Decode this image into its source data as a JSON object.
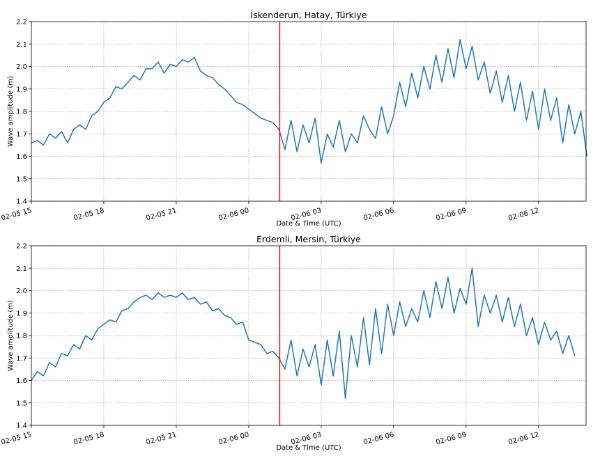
{
  "chart_data": [
    {
      "type": "line",
      "title": "İskenderun, Hatay, Türkiye",
      "xlabel": "Date & Time (UTC)",
      "ylabel": "Wave amplitude (m)",
      "ylim": [
        1.4,
        2.2
      ],
      "yticks": [
        "1.4",
        "1.5",
        "1.6",
        "1.7",
        "1.8",
        "1.9",
        "2.0",
        "2.1",
        "2.2"
      ],
      "xlim": [
        "02-05 15:00",
        "02-06 13:58"
      ],
      "xticks": [
        "02-05 15",
        "02-05 18",
        "02-05 21",
        "02-06 00",
        "02-06 03",
        "02-06 06",
        "02-06 09",
        "02-06 12"
      ],
      "grid": true,
      "line_color": "#1f77b4",
      "event_line": {
        "time": "02-06 01:17",
        "color": "#ff0000"
      },
      "series": [
        {
          "start": "02-05 15:00",
          "step_minutes": 15,
          "values": [
            1.66,
            1.67,
            1.65,
            1.7,
            1.68,
            1.71,
            1.66,
            1.72,
            1.74,
            1.72,
            1.78,
            1.8,
            1.84,
            1.86,
            1.91,
            1.9,
            1.93,
            1.96,
            1.94,
            1.99,
            1.99,
            2.02,
            1.97,
            2.01,
            2.0,
            2.03,
            2.02,
            2.04,
            1.98,
            1.96,
            1.95,
            1.92,
            1.9,
            1.87,
            1.84,
            1.83,
            1.81,
            1.79,
            1.77,
            1.76,
            1.75,
            1.72,
            1.63,
            1.76,
            1.62,
            1.74,
            1.66,
            1.77,
            1.57,
            1.7,
            1.64,
            1.76,
            1.62,
            1.7,
            1.66,
            1.78,
            1.72,
            1.68,
            1.82,
            1.7,
            1.78,
            1.93,
            1.82,
            1.97,
            1.86,
            2.0,
            1.9,
            2.05,
            1.93,
            2.08,
            1.95,
            2.12,
            1.99,
            2.09,
            1.94,
            2.02,
            1.88,
            1.98,
            1.84,
            1.96,
            1.8,
            1.93,
            1.76,
            1.89,
            1.72,
            1.9,
            1.76,
            1.86,
            1.66,
            1.83,
            1.7,
            1.8,
            1.6
          ]
        }
      ]
    },
    {
      "type": "line",
      "title": "Erdemli, Mersin, Türkiye",
      "xlabel": "Date & Time (UTC)",
      "ylabel": "Wave amplitude (m)",
      "ylim": [
        1.4,
        2.2
      ],
      "yticks": [
        "1.4",
        "1.5",
        "1.6",
        "1.7",
        "1.8",
        "1.9",
        "2.0",
        "2.1",
        "2.2"
      ],
      "xlim": [
        "02-05 15:00",
        "02-06 13:58"
      ],
      "xticks": [
        "02-05 15",
        "02-05 18",
        "02-05 21",
        "02-06 00",
        "02-06 03",
        "02-06 06",
        "02-06 09",
        "02-06 12"
      ],
      "grid": true,
      "line_color": "#1f77b4",
      "event_line": {
        "time": "02-06 01:17",
        "color": "#ff0000"
      },
      "series": [
        {
          "start": "02-05 15:00",
          "step_minutes": 15,
          "values": [
            1.6,
            1.64,
            1.62,
            1.68,
            1.66,
            1.72,
            1.71,
            1.76,
            1.74,
            1.8,
            1.78,
            1.83,
            1.85,
            1.87,
            1.86,
            1.91,
            1.92,
            1.95,
            1.97,
            1.98,
            1.96,
            1.99,
            1.97,
            1.98,
            1.97,
            1.99,
            1.96,
            1.97,
            1.94,
            1.95,
            1.91,
            1.92,
            1.89,
            1.88,
            1.85,
            1.86,
            1.78,
            1.77,
            1.76,
            1.72,
            1.73,
            1.7,
            1.65,
            1.78,
            1.62,
            1.74,
            1.66,
            1.76,
            1.58,
            1.78,
            1.62,
            1.82,
            1.52,
            1.8,
            1.66,
            1.88,
            1.67,
            1.92,
            1.72,
            1.94,
            1.8,
            1.95,
            1.84,
            1.92,
            1.86,
            2.0,
            1.88,
            2.04,
            1.92,
            2.06,
            1.9,
            2.01,
            1.94,
            2.1,
            1.84,
            1.98,
            1.9,
            1.98,
            1.86,
            1.97,
            1.84,
            1.94,
            1.8,
            1.88,
            1.76,
            1.86,
            1.78,
            1.82,
            1.72,
            1.8,
            1.71
          ]
        }
      ]
    }
  ]
}
